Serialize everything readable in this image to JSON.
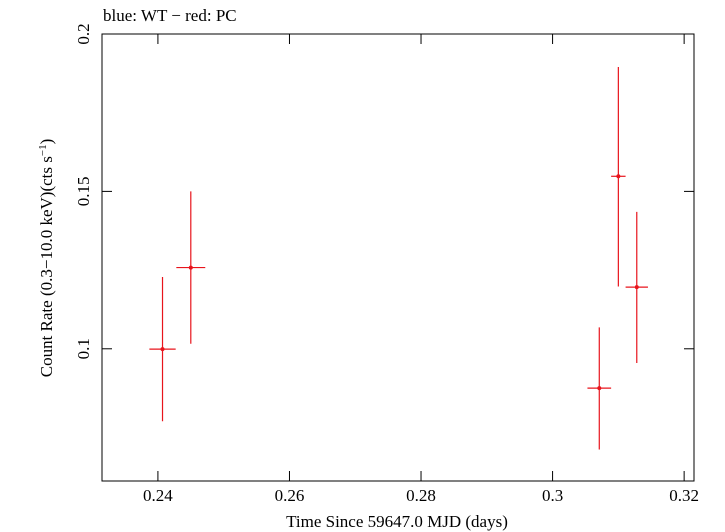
{
  "chart_data": {
    "type": "scatter",
    "title": "blue: WT − red: PC",
    "xlabel": "Time Since 59647.0 MJD (days)",
    "ylabel_main": "Count Rate (0.3−10.0 keV)(cts s",
    "ylabel_sup": "−1",
    "ylabel_end": ")",
    "xlim": [
      0.2315,
      0.3215
    ],
    "ylim": [
      0.058,
      0.2
    ],
    "xticks": [
      {
        "value": 0.24,
        "label": "0.24"
      },
      {
        "value": 0.26,
        "label": "0.26"
      },
      {
        "value": 0.28,
        "label": "0.28"
      },
      {
        "value": 0.3,
        "label": "0.3"
      },
      {
        "value": 0.32,
        "label": "0.32"
      }
    ],
    "yticks": [
      {
        "value": 0.1,
        "label": "0.1"
      },
      {
        "value": 0.15,
        "label": "0.15"
      },
      {
        "value": 0.2,
        "label": "0.2"
      }
    ],
    "grid": false,
    "series": [
      {
        "name": "PC",
        "color": "#e8141c",
        "points": [
          {
            "x": 0.2407,
            "y": 0.0999,
            "xerr": 0.002,
            "ylo": 0.077,
            "yhi": 0.1228
          },
          {
            "x": 0.245,
            "y": 0.1258,
            "xerr": 0.0022,
            "ylo": 0.1016,
            "yhi": 0.15
          },
          {
            "x": 0.3071,
            "y": 0.0875,
            "xerr": 0.0018,
            "ylo": 0.068,
            "yhi": 0.1068
          },
          {
            "x": 0.31,
            "y": 0.1548,
            "xerr": 0.0011,
            "ylo": 0.1198,
            "yhi": 0.1895
          },
          {
            "x": 0.3128,
            "y": 0.1196,
            "xerr": 0.0017,
            "ylo": 0.0955,
            "yhi": 0.1435
          }
        ]
      }
    ]
  }
}
